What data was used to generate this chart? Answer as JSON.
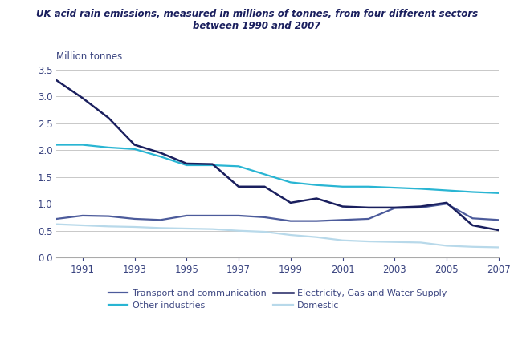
{
  "title_line1": "UK acid rain emissions, measured in millions of tonnes, from four different sectors",
  "title_line2": "between 1990 and 2007",
  "ylabel": "Million tonnes",
  "years": [
    1990,
    1991,
    1992,
    1993,
    1994,
    1995,
    1996,
    1997,
    1998,
    1999,
    2000,
    2001,
    2002,
    2003,
    2004,
    2005,
    2006,
    2007
  ],
  "transport": [
    0.72,
    0.78,
    0.77,
    0.72,
    0.7,
    0.78,
    0.78,
    0.78,
    0.75,
    0.68,
    0.68,
    0.7,
    0.72,
    0.92,
    0.93,
    1.0,
    0.73,
    0.7
  ],
  "electricity": [
    3.3,
    2.97,
    2.6,
    2.1,
    1.95,
    1.75,
    1.74,
    1.32,
    1.32,
    1.02,
    1.1,
    0.95,
    0.93,
    0.93,
    0.95,
    1.02,
    0.6,
    0.51
  ],
  "other_industries": [
    2.1,
    2.1,
    2.05,
    2.02,
    1.88,
    1.72,
    1.72,
    1.7,
    1.55,
    1.4,
    1.35,
    1.32,
    1.32,
    1.3,
    1.28,
    1.25,
    1.22,
    1.2
  ],
  "domestic": [
    0.62,
    0.6,
    0.58,
    0.57,
    0.55,
    0.54,
    0.53,
    0.5,
    0.48,
    0.42,
    0.38,
    0.32,
    0.3,
    0.29,
    0.28,
    0.22,
    0.2,
    0.19
  ],
  "transport_color": "#4c5b9b",
  "electricity_color": "#1a1f5e",
  "other_industries_color": "#29b5d3",
  "domestic_color": "#b8d9ea",
  "text_color": "#3a4480",
  "ylim": [
    0,
    3.5
  ],
  "yticks": [
    0,
    0.5,
    1.0,
    1.5,
    2.0,
    2.5,
    3.0,
    3.5
  ],
  "xticks": [
    1991,
    1993,
    1995,
    1997,
    1999,
    2001,
    2003,
    2005,
    2007
  ],
  "xlim": [
    1990,
    2007
  ],
  "legend_transport": "Transport and communication",
  "legend_electricity": "Electricity, Gas and Water Supply",
  "legend_other": "Other industries",
  "legend_domestic": "Domestic",
  "background_color": "#ffffff",
  "grid_color": "#c8c8c8"
}
